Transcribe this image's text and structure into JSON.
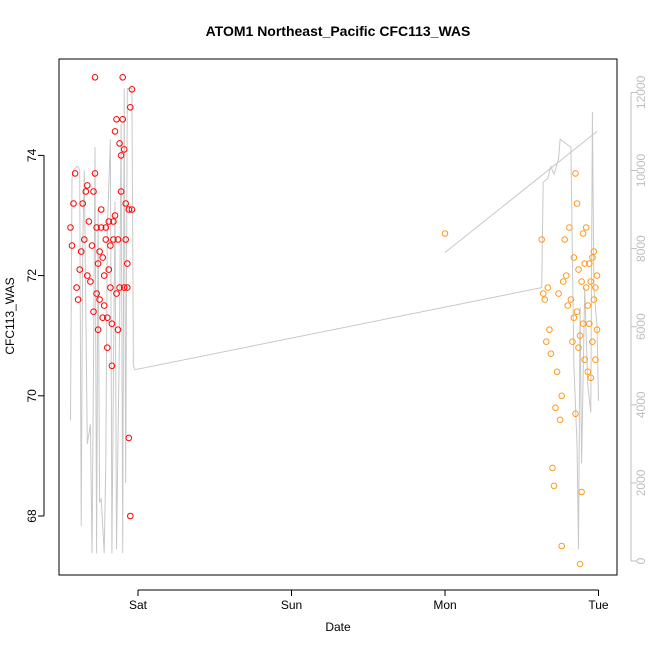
{
  "chart_data": {
    "type": "scatter",
    "title": "ATOM1 Northeast_Pacific CFC113_WAS",
    "xlabel": "Date",
    "ylabel": "CFC113_WAS",
    "x_ticks": [
      "Sat",
      "Sun",
      "Mon",
      "Tue"
    ],
    "x_range_days": [
      -0.52,
      3.12
    ],
    "y_left": {
      "range": [
        67.3,
        75.4
      ],
      "ticks": [
        68,
        70,
        72,
        74
      ]
    },
    "y_right": {
      "range": [
        -300,
        12800
      ],
      "ticks": [
        0,
        2000,
        4000,
        6000,
        8000,
        10000,
        12000
      ],
      "color": "#bebebe"
    },
    "grid": false,
    "colors": {
      "series_1": "#ff0000",
      "series_2": "#ff9a1a",
      "altitude_line": "#c8c8c8",
      "axes": "#000000"
    },
    "series": [
      {
        "color": "#ff0000",
        "points": [
          {
            "x": -0.44,
            "y": 72.8
          },
          {
            "x": -0.43,
            "y": 72.5
          },
          {
            "x": -0.42,
            "y": 73.2
          },
          {
            "x": -0.41,
            "y": 73.7
          },
          {
            "x": -0.4,
            "y": 71.8
          },
          {
            "x": -0.39,
            "y": 71.6
          },
          {
            "x": -0.38,
            "y": 72.1
          },
          {
            "x": -0.37,
            "y": 72.4
          },
          {
            "x": -0.36,
            "y": 73.2
          },
          {
            "x": -0.35,
            "y": 72.6
          },
          {
            "x": -0.34,
            "y": 73.4
          },
          {
            "x": -0.33,
            "y": 72.0
          },
          {
            "x": -0.33,
            "y": 73.5
          },
          {
            "x": -0.32,
            "y": 72.9
          },
          {
            "x": -0.31,
            "y": 71.9
          },
          {
            "x": -0.3,
            "y": 72.5
          },
          {
            "x": -0.29,
            "y": 71.4
          },
          {
            "x": -0.29,
            "y": 73.4
          },
          {
            "x": -0.28,
            "y": 73.7
          },
          {
            "x": -0.28,
            "y": 75.3
          },
          {
            "x": -0.27,
            "y": 72.8
          },
          {
            "x": -0.27,
            "y": 71.7
          },
          {
            "x": -0.26,
            "y": 72.2
          },
          {
            "x": -0.26,
            "y": 71.1
          },
          {
            "x": -0.25,
            "y": 72.4
          },
          {
            "x": -0.25,
            "y": 71.6
          },
          {
            "x": -0.24,
            "y": 72.8
          },
          {
            "x": -0.24,
            "y": 73.1
          },
          {
            "x": -0.23,
            "y": 72.3
          },
          {
            "x": -0.23,
            "y": 71.3
          },
          {
            "x": -0.22,
            "y": 72.0
          },
          {
            "x": -0.22,
            "y": 71.5
          },
          {
            "x": -0.21,
            "y": 72.8
          },
          {
            "x": -0.21,
            "y": 72.6
          },
          {
            "x": -0.2,
            "y": 71.3
          },
          {
            "x": -0.2,
            "y": 70.8
          },
          {
            "x": -0.19,
            "y": 72.1
          },
          {
            "x": -0.19,
            "y": 72.9
          },
          {
            "x": -0.18,
            "y": 71.8
          },
          {
            "x": -0.18,
            "y": 72.5
          },
          {
            "x": -0.17,
            "y": 70.5
          },
          {
            "x": -0.17,
            "y": 71.2
          },
          {
            "x": -0.16,
            "y": 72.6
          },
          {
            "x": -0.16,
            "y": 72.9
          },
          {
            "x": -0.15,
            "y": 74.4
          },
          {
            "x": -0.15,
            "y": 73.0
          },
          {
            "x": -0.14,
            "y": 74.6
          },
          {
            "x": -0.14,
            "y": 71.7
          },
          {
            "x": -0.13,
            "y": 72.6
          },
          {
            "x": -0.13,
            "y": 71.1
          },
          {
            "x": -0.12,
            "y": 71.8
          },
          {
            "x": -0.12,
            "y": 74.2
          },
          {
            "x": -0.11,
            "y": 74.0
          },
          {
            "x": -0.11,
            "y": 73.4
          },
          {
            "x": -0.1,
            "y": 74.6
          },
          {
            "x": -0.1,
            "y": 75.3
          },
          {
            "x": -0.09,
            "y": 74.1
          },
          {
            "x": -0.09,
            "y": 71.8
          },
          {
            "x": -0.08,
            "y": 72.6
          },
          {
            "x": -0.08,
            "y": 73.2
          },
          {
            "x": -0.07,
            "y": 72.2
          },
          {
            "x": -0.07,
            "y": 71.8
          },
          {
            "x": -0.06,
            "y": 73.1
          },
          {
            "x": -0.06,
            "y": 69.3
          },
          {
            "x": -0.05,
            "y": 68.0
          },
          {
            "x": -0.05,
            "y": 74.8
          },
          {
            "x": -0.04,
            "y": 73.1
          },
          {
            "x": -0.04,
            "y": 75.1
          }
        ]
      },
      {
        "color": "#ff9a1a",
        "points": [
          {
            "x": 2.0,
            "y": 72.7
          },
          {
            "x": 2.63,
            "y": 72.6
          },
          {
            "x": 2.64,
            "y": 71.7
          },
          {
            "x": 2.65,
            "y": 71.6
          },
          {
            "x": 2.66,
            "y": 70.9
          },
          {
            "x": 2.67,
            "y": 71.8
          },
          {
            "x": 2.68,
            "y": 71.1
          },
          {
            "x": 2.69,
            "y": 70.7
          },
          {
            "x": 2.7,
            "y": 68.8
          },
          {
            "x": 2.71,
            "y": 68.5
          },
          {
            "x": 2.72,
            "y": 69.8
          },
          {
            "x": 2.73,
            "y": 70.4
          },
          {
            "x": 2.74,
            "y": 71.7
          },
          {
            "x": 2.75,
            "y": 69.6
          },
          {
            "x": 2.76,
            "y": 70.0
          },
          {
            "x": 2.76,
            "y": 67.5
          },
          {
            "x": 2.77,
            "y": 71.9
          },
          {
            "x": 2.78,
            "y": 72.6
          },
          {
            "x": 2.79,
            "y": 72.0
          },
          {
            "x": 2.8,
            "y": 71.5
          },
          {
            "x": 2.81,
            "y": 72.8
          },
          {
            "x": 2.82,
            "y": 71.6
          },
          {
            "x": 2.83,
            "y": 70.9
          },
          {
            "x": 2.84,
            "y": 71.3
          },
          {
            "x": 2.84,
            "y": 72.3
          },
          {
            "x": 2.85,
            "y": 69.7
          },
          {
            "x": 2.85,
            "y": 73.7
          },
          {
            "x": 2.86,
            "y": 71.4
          },
          {
            "x": 2.86,
            "y": 73.2
          },
          {
            "x": 2.87,
            "y": 70.8
          },
          {
            "x": 2.87,
            "y": 72.1
          },
          {
            "x": 2.88,
            "y": 71.0
          },
          {
            "x": 2.88,
            "y": 67.2
          },
          {
            "x": 2.89,
            "y": 68.4
          },
          {
            "x": 2.89,
            "y": 71.9
          },
          {
            "x": 2.9,
            "y": 72.7
          },
          {
            "x": 2.9,
            "y": 71.2
          },
          {
            "x": 2.91,
            "y": 72.2
          },
          {
            "x": 2.91,
            "y": 70.6
          },
          {
            "x": 2.92,
            "y": 71.8
          },
          {
            "x": 2.92,
            "y": 72.8
          },
          {
            "x": 2.93,
            "y": 71.5
          },
          {
            "x": 2.93,
            "y": 70.4
          },
          {
            "x": 2.94,
            "y": 71.2
          },
          {
            "x": 2.94,
            "y": 72.2
          },
          {
            "x": 2.95,
            "y": 70.3
          },
          {
            "x": 2.95,
            "y": 71.9
          },
          {
            "x": 2.96,
            "y": 72.3
          },
          {
            "x": 2.96,
            "y": 70.9
          },
          {
            "x": 2.97,
            "y": 71.6
          },
          {
            "x": 2.97,
            "y": 72.4
          },
          {
            "x": 2.98,
            "y": 71.8
          },
          {
            "x": 2.98,
            "y": 70.6
          },
          {
            "x": 2.99,
            "y": 72.0
          },
          {
            "x": 2.99,
            "y": 71.1
          }
        ]
      }
    ],
    "altitude_line": {
      "axis": "right",
      "segments": [
        [
          {
            "x": -0.44,
            "y": 3600
          },
          {
            "x": -0.43,
            "y": 9800
          },
          {
            "x": -0.42,
            "y": 10000
          },
          {
            "x": -0.4,
            "y": 10100
          },
          {
            "x": -0.39,
            "y": 10100
          },
          {
            "x": -0.38,
            "y": 10000
          },
          {
            "x": -0.37,
            "y": 900
          },
          {
            "x": -0.36,
            "y": 8000
          },
          {
            "x": -0.35,
            "y": 10000
          },
          {
            "x": -0.33,
            "y": 3000
          },
          {
            "x": -0.31,
            "y": 3500
          },
          {
            "x": -0.3,
            "y": 200
          },
          {
            "x": -0.29,
            "y": 5000
          },
          {
            "x": -0.28,
            "y": 10600
          },
          {
            "x": -0.27,
            "y": 200
          },
          {
            "x": -0.26,
            "y": 9000
          },
          {
            "x": -0.25,
            "y": 1500
          },
          {
            "x": -0.24,
            "y": 1600
          },
          {
            "x": -0.22,
            "y": 200
          },
          {
            "x": -0.21,
            "y": 2500
          },
          {
            "x": -0.2,
            "y": 8500
          },
          {
            "x": -0.18,
            "y": 10800
          },
          {
            "x": -0.17,
            "y": 200
          },
          {
            "x": -0.15,
            "y": 9200
          },
          {
            "x": -0.14,
            "y": 300
          },
          {
            "x": -0.12,
            "y": 6000
          },
          {
            "x": -0.11,
            "y": 11200
          },
          {
            "x": -0.1,
            "y": 200
          },
          {
            "x": -0.09,
            "y": 12100
          },
          {
            "x": -0.08,
            "y": 2000
          },
          {
            "x": -0.07,
            "y": 12100
          },
          {
            "x": -0.04,
            "y": 12100
          },
          {
            "x": -0.03,
            "y": 5000
          },
          {
            "x": -0.02,
            "y": 4900
          },
          {
            "x": 2.63,
            "y": 7000
          },
          {
            "x": 2.64,
            "y": 9700
          },
          {
            "x": 2.67,
            "y": 9800
          },
          {
            "x": 2.69,
            "y": 10100
          },
          {
            "x": 2.71,
            "y": 9900
          },
          {
            "x": 2.74,
            "y": 10300
          },
          {
            "x": 2.75,
            "y": 10800
          },
          {
            "x": 2.82,
            "y": 10600
          },
          {
            "x": 2.84,
            "y": 5000
          },
          {
            "x": 2.86,
            "y": 3000
          },
          {
            "x": 2.87,
            "y": 300
          },
          {
            "x": 2.88,
            "y": 6500
          },
          {
            "x": 2.89,
            "y": 2500
          },
          {
            "x": 2.91,
            "y": 7000
          },
          {
            "x": 2.93,
            "y": 4500
          },
          {
            "x": 2.95,
            "y": 3800
          },
          {
            "x": 2.96,
            "y": 11500
          },
          {
            "x": 2.97,
            "y": 7000
          },
          {
            "x": 2.99,
            "y": 6000
          },
          {
            "x": 3.0,
            "y": 4100
          }
        ],
        [
          {
            "x": 2.0,
            "y": 7900
          },
          {
            "x": 2.99,
            "y": 11000
          }
        ]
      ]
    }
  }
}
